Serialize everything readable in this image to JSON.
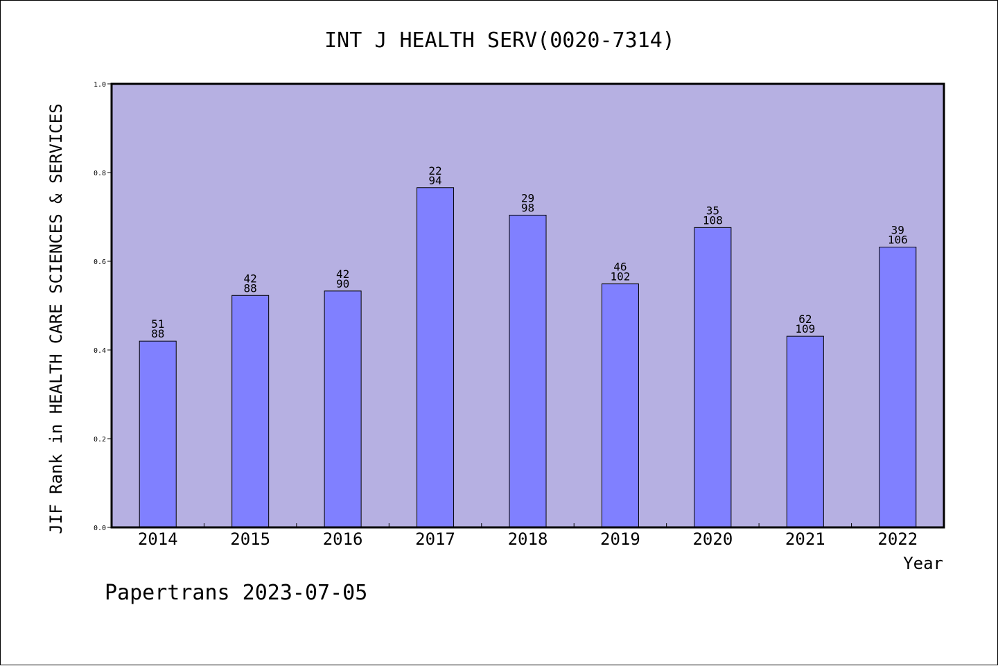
{
  "chart_data": {
    "type": "bar",
    "title": "INT J HEALTH SERV(0020-7314)",
    "xlabel": "Year",
    "ylabel": "JIF Rank in HEALTH CARE SCIENCES & SERVICES",
    "ylim": [
      0,
      1.0
    ],
    "yticks": [
      "0.0",
      "0.2",
      "0.4",
      "0.6",
      "0.8",
      "1.0"
    ],
    "categories": [
      "2014",
      "2015",
      "2016",
      "2017",
      "2018",
      "2019",
      "2020",
      "2021",
      "2022"
    ],
    "values": [
      0.42,
      0.523,
      0.533,
      0.766,
      0.704,
      0.549,
      0.676,
      0.431,
      0.632
    ],
    "rank": [
      "51",
      "42",
      "42",
      "22",
      "29",
      "46",
      "35",
      "62",
      "39"
    ],
    "total": [
      "88",
      "88",
      "90",
      "94",
      "98",
      "102",
      "108",
      "109",
      "106"
    ],
    "grid": false,
    "colors": {
      "plot_background": "#b6b0e2",
      "bar_fill": "#8080ff",
      "bar_stroke": "#000000"
    }
  },
  "footer": "Papertrans 2023-07-05"
}
